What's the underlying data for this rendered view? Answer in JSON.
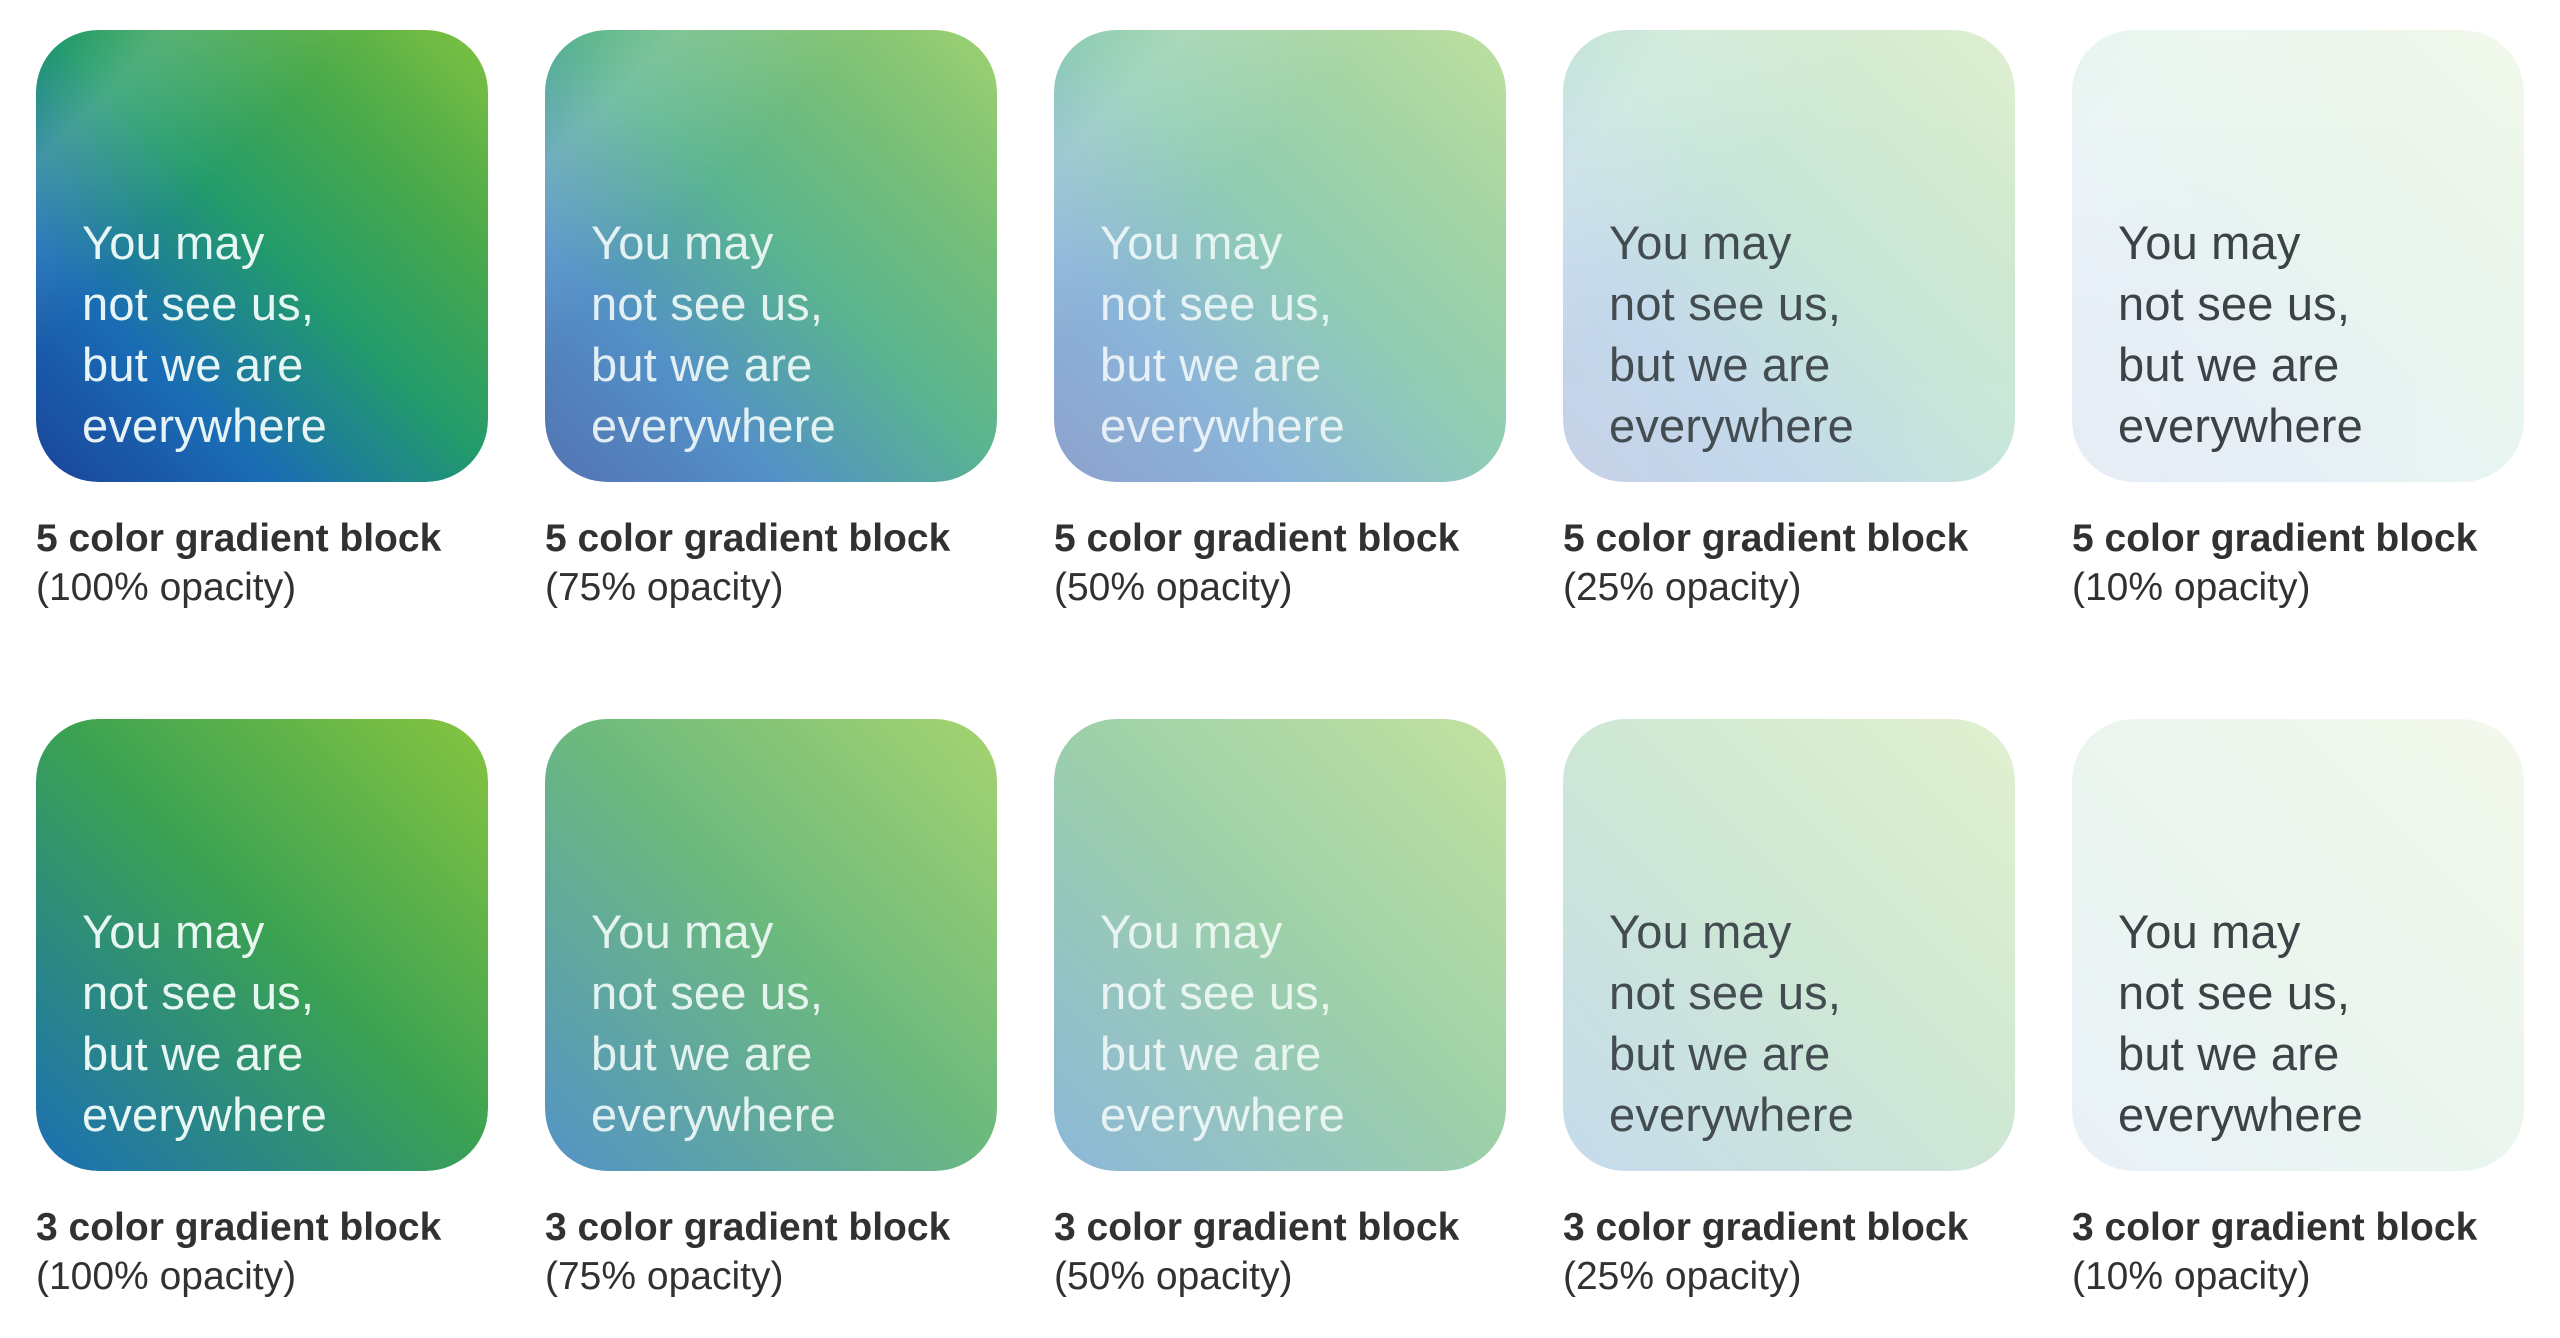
{
  "quote": {
    "text": "You may\nnot see us,\nbut we are\neverywhere"
  },
  "colors": {
    "page_background": "#ffffff",
    "caption_text": "#333031",
    "five_1": "#1a4499",
    "five_2": "#1a6cb5",
    "five_3": "#239c6a",
    "five_4": "#4baa4a",
    "five_5": "#7fc241",
    "three_1": "#1b6fb4",
    "three_2": "#3ba252",
    "three_3": "#87c540"
  },
  "rows": [
    {
      "variant": "5 color gradient",
      "blocks": [
        {
          "title": "5 color gradient block",
          "subtitle": "(100% opacity)",
          "opacity_percent": 100
        },
        {
          "title": "5 color gradient block",
          "subtitle": "(75% opacity)",
          "opacity_percent": 75
        },
        {
          "title": "5 color gradient block",
          "subtitle": "(50% opacity)",
          "opacity_percent": 50
        },
        {
          "title": "5 color gradient block",
          "subtitle": "(25% opacity)",
          "opacity_percent": 25
        },
        {
          "title": "5 color gradient block",
          "subtitle": "(10% opacity)",
          "opacity_percent": 10
        }
      ]
    },
    {
      "variant": "3 color gradient",
      "blocks": [
        {
          "title": "3 color gradient block",
          "subtitle": "(100% opacity)",
          "opacity_percent": 100
        },
        {
          "title": "3 color gradient block",
          "subtitle": "(75% opacity)",
          "opacity_percent": 75
        },
        {
          "title": "3 color gradient block",
          "subtitle": "(50% opacity)",
          "opacity_percent": 50
        },
        {
          "title": "3 color gradient block",
          "subtitle": "(25% opacity)",
          "opacity_percent": 25
        },
        {
          "title": "3 color gradient block",
          "subtitle": "(10% opacity)",
          "opacity_percent": 10
        }
      ]
    }
  ]
}
